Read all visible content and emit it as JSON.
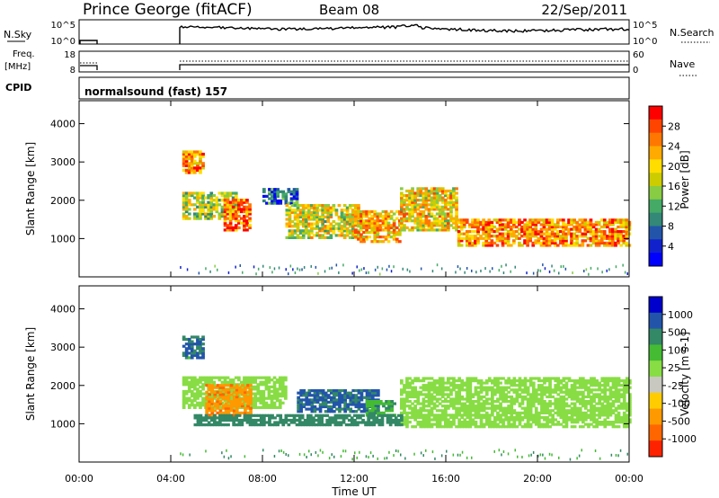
{
  "header": {
    "title": "Prince George (fitACF)",
    "beam": "Beam 08",
    "date": "22/Sep/2011"
  },
  "status": {
    "nsky_label": "N.Sky",
    "nsky_top": "10^5",
    "nsky_bottom": "10^0",
    "nsearch_label": "N.Search",
    "nsearch_top": "10^5",
    "nsearch_bottom": "10^0",
    "freq_label": "Freq.",
    "freq_unit": "[MHz]",
    "freq_top": "18",
    "freq_bottom": "8",
    "nave_label": "Nave",
    "nave_top": "60",
    "nave_bottom": "0",
    "cpid_label": "CPID",
    "cpid_value": "normalsound (fast) 157"
  },
  "chart_data": [
    {
      "type": "heatmap",
      "ylabel": "Slant Range [km]",
      "yticks": [
        "1000",
        "2000",
        "3000",
        "4000"
      ],
      "ylim": [
        0,
        4600
      ],
      "colorbar_label": "Power [dB]",
      "colorbar_ticks": [
        "28",
        "24",
        "20",
        "16",
        "12",
        "8",
        "4"
      ],
      "colorbar_colors": [
        "#ff0000",
        "#ff4400",
        "#ff7700",
        "#ffaa00",
        "#ffdd00",
        "#cccc00",
        "#88cc44",
        "#44aa66",
        "#338877",
        "#2255aa",
        "#1122cc",
        "#0000ff"
      ],
      "regions": [
        {
          "t": [
            4.5,
            5.4
          ],
          "r": [
            2700,
            3300
          ],
          "v": 24
        },
        {
          "t": [
            4.5,
            6.8
          ],
          "r": [
            1500,
            2200
          ],
          "v": 16
        },
        {
          "t": [
            6.3,
            7.5
          ],
          "r": [
            1200,
            2000
          ],
          "v": 26
        },
        {
          "t": [
            8.0,
            9.5
          ],
          "r": [
            1900,
            2300
          ],
          "v": 8
        },
        {
          "t": [
            9.0,
            12.2
          ],
          "r": [
            1000,
            1900
          ],
          "v": 18
        },
        {
          "t": [
            12.0,
            14.0
          ],
          "r": [
            900,
            1700
          ],
          "v": 22
        },
        {
          "t": [
            14.0,
            16.5
          ],
          "r": [
            1200,
            2300
          ],
          "v": 20
        },
        {
          "t": [
            16.5,
            24.0
          ],
          "r": [
            800,
            1500
          ],
          "v": 24
        }
      ]
    },
    {
      "type": "heatmap",
      "ylabel": "Slant Range [km]",
      "yticks": [
        "1000",
        "2000",
        "3000",
        "4000"
      ],
      "ylim": [
        0,
        4600
      ],
      "xlabel": "Time UT",
      "xticks": [
        "00:00",
        "04:00",
        "08:00",
        "12:00",
        "16:00",
        "20:00",
        "00:00"
      ],
      "xlim": [
        0,
        24
      ],
      "colorbar_label": "Velocity [m s-1]",
      "colorbar_ticks": [
        "1000",
        "500",
        "100",
        "25",
        "-25",
        "-100",
        "-500",
        "-1000"
      ],
      "colorbar_colors": [
        "#0000cc",
        "#2255aa",
        "#338866",
        "#44bb33",
        "#88dd44",
        "#c8c8c0",
        "#ffcc00",
        "#ff9900",
        "#ff6600",
        "#ff2200"
      ],
      "regions": [
        {
          "t": [
            4.5,
            5.4
          ],
          "r": [
            2700,
            3300
          ],
          "v": 300
        },
        {
          "t": [
            4.5,
            9.0
          ],
          "r": [
            1400,
            2200
          ],
          "v": 0
        },
        {
          "t": [
            5.5,
            7.5
          ],
          "r": [
            1200,
            2000
          ],
          "v": -600
        },
        {
          "t": [
            9.5,
            13.0
          ],
          "r": [
            1300,
            1900
          ],
          "v": 400
        },
        {
          "t": [
            12.5,
            13.8
          ],
          "r": [
            1200,
            1600
          ],
          "v": 50
        },
        {
          "t": [
            14.0,
            24.0
          ],
          "r": [
            900,
            2200
          ],
          "v": 0
        },
        {
          "t": [
            5.0,
            14.0
          ],
          "r": [
            950,
            1250
          ],
          "v": 80
        }
      ]
    }
  ]
}
